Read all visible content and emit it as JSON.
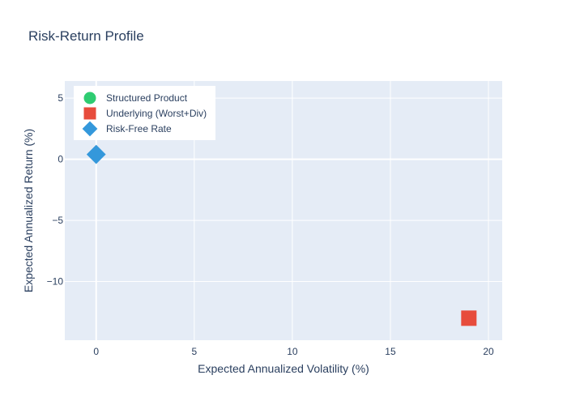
{
  "chart_data": {
    "type": "scatter",
    "title": "Risk-Return Profile",
    "xlabel": "Expected Annualized Volatility (%)",
    "ylabel": "Expected Annualized Return (%)",
    "xlim": [
      -1.6,
      20.7
    ],
    "ylim": [
      -14.8,
      6.4
    ],
    "xticks": [
      0,
      5,
      10,
      15,
      20
    ],
    "xtick_labels": [
      "0",
      "5",
      "10",
      "15",
      "20"
    ],
    "yticks": [
      -10,
      -5,
      0,
      5
    ],
    "ytick_labels": [
      "−10",
      "−5",
      "0",
      "5"
    ],
    "grid": true,
    "legend_position": "top-left",
    "series": [
      {
        "name": "Structured Product",
        "symbol": "circle",
        "color": "#2ecc71",
        "points": []
      },
      {
        "name": "Underlying (Worst+Div)",
        "symbol": "square",
        "color": "#e74c3c",
        "points": [
          {
            "x": 19.0,
            "y": -13.0
          }
        ]
      },
      {
        "name": "Risk-Free Rate",
        "symbol": "diamond",
        "color": "#3498db",
        "points": [
          {
            "x": 0.0,
            "y": 0.4
          }
        ]
      }
    ]
  }
}
